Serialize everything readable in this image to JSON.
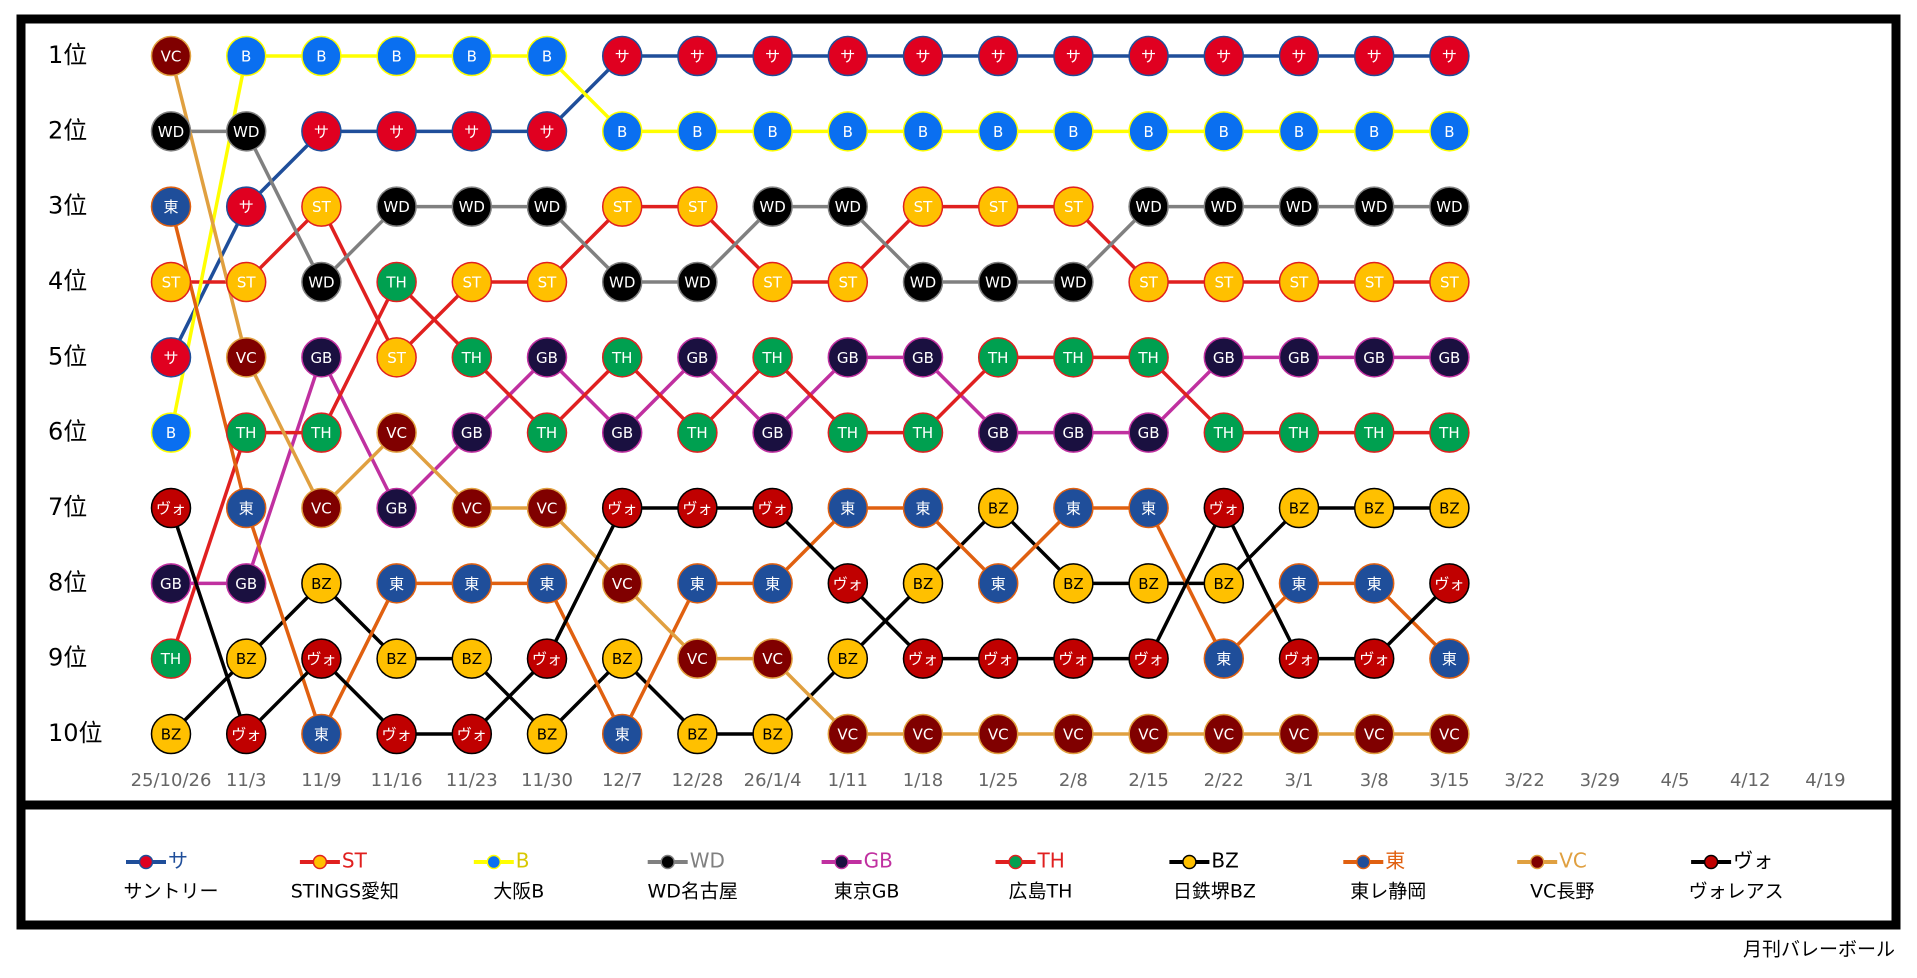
{
  "chart_data": {
    "type": "bump",
    "categories": [
      "25/10/26",
      "11/3",
      "11/9",
      "11/16",
      "11/23",
      "11/30",
      "12/7",
      "12/28",
      "26/1/4",
      "1/11",
      "1/18",
      "1/25",
      "2/8",
      "2/15",
      "2/22",
      "3/1",
      "3/8",
      "3/15",
      "3/22",
      "3/29",
      "4/5",
      "4/12",
      "4/19"
    ],
    "ylim": [
      0.5,
      10.5
    ],
    "y_reversed": true,
    "yticks": [
      {
        "value": 1,
        "label": "1位"
      },
      {
        "value": 2,
        "label": "2位"
      },
      {
        "value": 3,
        "label": "3位"
      },
      {
        "value": 4,
        "label": "4位"
      },
      {
        "value": 5,
        "label": "5位"
      },
      {
        "value": 6,
        "label": "6位"
      },
      {
        "value": 7,
        "label": "7位"
      },
      {
        "value": 8,
        "label": "8位"
      },
      {
        "value": 9,
        "label": "9位"
      },
      {
        "value": 10,
        "label": "10位"
      }
    ],
    "series": [
      {
        "name": "サントリー",
        "abbr": "サ",
        "color": "#1f4e9a",
        "marker_color": "#e00020",
        "label_color": "#ffffff",
        "values": [
          5,
          3,
          2,
          2,
          2,
          2,
          1,
          1,
          1,
          1,
          1,
          1,
          1,
          1,
          1,
          1,
          1,
          1,
          null,
          null,
          null,
          null,
          null
        ]
      },
      {
        "name": "STINGS愛知",
        "abbr": "ST",
        "color": "#e0201f",
        "marker_color": "#ffc000",
        "label_color": "#ffffff",
        "values": [
          4,
          4,
          3,
          5,
          4,
          4,
          3,
          3,
          4,
          4,
          3,
          3,
          3,
          4,
          4,
          4,
          4,
          4,
          null,
          null,
          null,
          null,
          null
        ]
      },
      {
        "name": "大阪B",
        "abbr": "B",
        "color": "#ffff00",
        "marker_color": "#0a6ff0",
        "label_color": "#ffffff",
        "values": [
          6,
          1,
          1,
          1,
          1,
          1,
          2,
          2,
          2,
          2,
          2,
          2,
          2,
          2,
          2,
          2,
          2,
          2,
          null,
          null,
          null,
          null,
          null
        ]
      },
      {
        "name": "WD名古屋",
        "abbr": "WD",
        "color": "#808080",
        "marker_color": "#000000",
        "label_color": "#ffffff",
        "values": [
          2,
          2,
          4,
          3,
          3,
          3,
          4,
          4,
          3,
          3,
          4,
          4,
          4,
          3,
          3,
          3,
          3,
          3,
          null,
          null,
          null,
          null,
          null
        ]
      },
      {
        "name": "東京GB",
        "abbr": "GB",
        "color": "#c030a0",
        "marker_color": "#1a1040",
        "label_color": "#ffffff",
        "values": [
          8,
          8,
          5,
          7,
          6,
          5,
          6,
          5,
          6,
          5,
          5,
          6,
          6,
          6,
          5,
          5,
          5,
          5,
          null,
          null,
          null,
          null,
          null
        ]
      },
      {
        "name": "広島TH",
        "abbr": "TH",
        "color": "#e02020",
        "marker_color": "#00a050",
        "label_color": "#ffffff",
        "values": [
          9,
          6,
          6,
          4,
          5,
          6,
          5,
          6,
          5,
          6,
          6,
          5,
          5,
          5,
          6,
          6,
          6,
          6,
          null,
          null,
          null,
          null,
          null
        ]
      },
      {
        "name": "日鉄堺BZ",
        "abbr": "BZ",
        "color": "#000000",
        "marker_color": "#ffc000",
        "label_color": "#000000",
        "values": [
          10,
          9,
          8,
          9,
          9,
          10,
          9,
          10,
          10,
          9,
          8,
          7,
          8,
          8,
          8,
          7,
          7,
          7,
          null,
          null,
          null,
          null,
          null
        ]
      },
      {
        "name": "東レ静岡",
        "abbr": "東",
        "color": "#e06010",
        "marker_color": "#1f4e9a",
        "label_color": "#ffffff",
        "values": [
          3,
          7,
          10,
          8,
          8,
          8,
          10,
          8,
          8,
          7,
          7,
          8,
          7,
          7,
          9,
          8,
          8,
          9,
          null,
          null,
          null,
          null,
          null
        ]
      },
      {
        "name": "VC長野",
        "abbr": "VC",
        "color": "#e0a040",
        "marker_color": "#800000",
        "label_color": "#ffffff",
        "values": [
          1,
          5,
          7,
          6,
          7,
          7,
          8,
          9,
          9,
          10,
          10,
          10,
          10,
          10,
          10,
          10,
          10,
          10,
          null,
          null,
          null,
          null,
          null
        ]
      },
      {
        "name": "ヴォレアス",
        "abbr": "ヴォ",
        "color": "#000000",
        "marker_color": "#c00000",
        "label_color": "#ffffff",
        "values": [
          7,
          10,
          9,
          10,
          10,
          9,
          7,
          7,
          7,
          8,
          9,
          9,
          9,
          9,
          7,
          9,
          9,
          8,
          null,
          null,
          null,
          null,
          null
        ]
      }
    ],
    "source": "月刊バレーボール"
  }
}
